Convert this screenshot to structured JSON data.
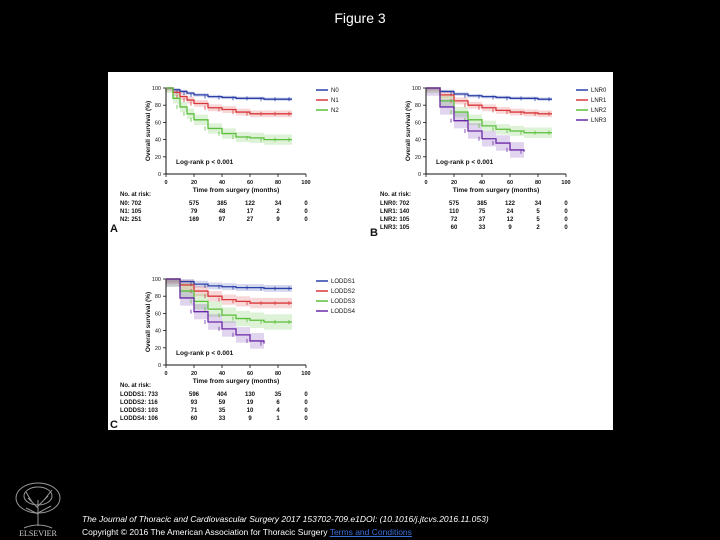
{
  "slide": {
    "title": "Figure 3",
    "citation": "The Journal of Thoracic and Cardiovascular Surgery 2017 153702-709.e1DOI: (10.1016/j.jtcvs.2016.11.053)",
    "copyright_text": "Copyright © 2016 The American Association for Thoracic Surgery ",
    "terms_link": "Terms and Conditions",
    "logo_text": "ELSEVIER"
  },
  "colors": {
    "blue": "#2b3fa8",
    "red": "#d9383a",
    "green": "#5bbf3a",
    "purple": "#6a2aa8"
  },
  "chart_data": [
    {
      "type": "line",
      "panel": "A",
      "ylabel": "Overall survival (%)",
      "xlabel": "Time from surgery (months)",
      "xlim": [
        0,
        100
      ],
      "ylim": [
        0,
        100
      ],
      "xticks": [
        0,
        20,
        40,
        60,
        80,
        100
      ],
      "yticks": [
        0,
        20,
        40,
        60,
        80,
        100
      ],
      "annotation": "Log-rank p < 0.001",
      "legend_position": "top-right",
      "series": [
        {
          "name": "N0",
          "color": "blue",
          "x": [
            0,
            5,
            10,
            15,
            20,
            30,
            40,
            50,
            60,
            70,
            80,
            90
          ],
          "y": [
            100,
            98,
            96,
            94,
            92,
            90,
            89,
            88,
            88,
            87,
            87,
            87
          ]
        },
        {
          "name": "N1",
          "color": "red",
          "x": [
            0,
            5,
            10,
            15,
            20,
            30,
            40,
            50,
            60,
            70,
            80,
            90
          ],
          "y": [
            100,
            95,
            90,
            86,
            82,
            77,
            75,
            72,
            70,
            70,
            70,
            70
          ]
        },
        {
          "name": "N2",
          "color": "green",
          "x": [
            0,
            5,
            10,
            15,
            20,
            30,
            40,
            50,
            60,
            70,
            80,
            90
          ],
          "y": [
            100,
            88,
            78,
            70,
            63,
            53,
            47,
            43,
            42,
            40,
            40,
            40
          ]
        }
      ],
      "risk_table": {
        "title": "No. at risk:",
        "times": [
          0,
          20,
          40,
          60,
          80,
          100
        ],
        "rows": [
          {
            "label": "N0: 702",
            "values": [
              "575",
              "385",
              "122",
              "34",
              "0"
            ]
          },
          {
            "label": "N1: 105",
            "values": [
              "79",
              "48",
              "17",
              "2",
              "0"
            ]
          },
          {
            "label": "N2: 251",
            "values": [
              "169",
              "97",
              "27",
              "9",
              "0"
            ]
          }
        ]
      }
    },
    {
      "type": "line",
      "panel": "B",
      "ylabel": "Overall survival (%)",
      "xlabel": "Time from surgery (months)",
      "xlim": [
        0,
        100
      ],
      "ylim": [
        0,
        100
      ],
      "xticks": [
        0,
        20,
        40,
        60,
        80,
        100
      ],
      "yticks": [
        0,
        20,
        40,
        60,
        80,
        100
      ],
      "annotation": "Log-rank p < 0.001",
      "legend_position": "top-right",
      "series": [
        {
          "name": "LNR0",
          "color": "blue",
          "x": [
            0,
            10,
            20,
            30,
            40,
            50,
            60,
            70,
            80,
            90
          ],
          "y": [
            100,
            96,
            93,
            91,
            90,
            89,
            88,
            88,
            87,
            87
          ]
        },
        {
          "name": "LNR1",
          "color": "red",
          "x": [
            0,
            10,
            20,
            30,
            40,
            50,
            60,
            70,
            80,
            90
          ],
          "y": [
            100,
            92,
            85,
            80,
            77,
            74,
            72,
            71,
            70,
            70
          ]
        },
        {
          "name": "LNR2",
          "color": "green",
          "x": [
            0,
            10,
            20,
            30,
            40,
            50,
            60,
            70,
            80,
            90
          ],
          "y": [
            100,
            85,
            72,
            63,
            56,
            52,
            50,
            48,
            48,
            48
          ]
        },
        {
          "name": "LNR3",
          "color": "purple",
          "x": [
            0,
            10,
            20,
            30,
            40,
            50,
            60,
            70
          ],
          "y": [
            100,
            78,
            62,
            50,
            41,
            36,
            28,
            26
          ]
        }
      ],
      "risk_table": {
        "title": "No. at risk:",
        "times": [
          0,
          20,
          40,
          60,
          80,
          100
        ],
        "rows": [
          {
            "label": "LNR0: 702",
            "values": [
              "575",
              "385",
              "122",
              "34",
              "0"
            ]
          },
          {
            "label": "LNR1: 140",
            "values": [
              "110",
              "75",
              "24",
              "5",
              "0"
            ]
          },
          {
            "label": "LNR2: 105",
            "values": [
              "72",
              "37",
              "12",
              "5",
              "0"
            ]
          },
          {
            "label": "LNR3: 105",
            "values": [
              "60",
              "33",
              "9",
              "2",
              "0"
            ]
          }
        ]
      }
    },
    {
      "type": "line",
      "panel": "C",
      "ylabel": "Overall survival (%)",
      "xlabel": "Time from surgery (months)",
      "xlim": [
        0,
        100
      ],
      "ylim": [
        0,
        100
      ],
      "xticks": [
        0,
        20,
        40,
        60,
        80,
        100
      ],
      "yticks": [
        0,
        20,
        40,
        60,
        80,
        100
      ],
      "annotation": "Log-rank p < 0.001",
      "legend_position": "top-right",
      "series": [
        {
          "name": "LODDS1",
          "color": "blue",
          "x": [
            0,
            10,
            20,
            30,
            40,
            50,
            60,
            70,
            80,
            90
          ],
          "y": [
            100,
            97,
            94,
            92,
            91,
            90,
            90,
            89,
            89,
            89
          ]
        },
        {
          "name": "LODDS2",
          "color": "red",
          "x": [
            0,
            10,
            20,
            30,
            40,
            50,
            60,
            70,
            80,
            90
          ],
          "y": [
            100,
            93,
            86,
            80,
            76,
            74,
            72,
            72,
            72,
            72
          ]
        },
        {
          "name": "LODDS3",
          "color": "green",
          "x": [
            0,
            10,
            20,
            30,
            40,
            50,
            60,
            70,
            80,
            90
          ],
          "y": [
            100,
            86,
            74,
            65,
            58,
            54,
            52,
            50,
            50,
            50
          ]
        },
        {
          "name": "LODDS4",
          "color": "purple",
          "x": [
            0,
            10,
            20,
            30,
            40,
            50,
            60,
            70
          ],
          "y": [
            100,
            78,
            62,
            50,
            42,
            35,
            28,
            25
          ]
        }
      ],
      "risk_table": {
        "title": "No. at risk:",
        "times": [
          0,
          20,
          40,
          60,
          80,
          100
        ],
        "rows": [
          {
            "label": "LODDS1: 733",
            "values": [
              "596",
              "404",
              "130",
              "35",
              "0"
            ]
          },
          {
            "label": "LODDS2: 116",
            "values": [
              "93",
              "59",
              "19",
              "6",
              "0"
            ]
          },
          {
            "label": "LODDS3: 103",
            "values": [
              "71",
              "35",
              "10",
              "4",
              "0"
            ]
          },
          {
            "label": "LODDS4: 106",
            "values": [
              "60",
              "33",
              "9",
              "1",
              "0"
            ]
          }
        ]
      }
    }
  ]
}
